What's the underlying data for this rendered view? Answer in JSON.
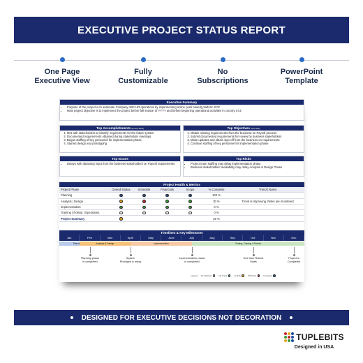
{
  "banner": {
    "title": "EXECUTIVE PROJECT STATUS REPORT"
  },
  "features": [
    {
      "label": "One Page\nExecutive View"
    },
    {
      "label": "Fully\nCustomizable"
    },
    {
      "label": "No\nSubscriptions"
    },
    {
      "label": "PowerPoint\nTemplate"
    }
  ],
  "report": {
    "executive_summary": {
      "title": "Executive Summary",
      "bullets": [
        "Purpose of the project is to automate Company ABC HR operations by implementing online (web based) platform XYZ",
        "Main project objective is to implement the project before fall season of YYYY and before beginning operational activities in country XYZ"
      ]
    },
    "accomplishments": {
      "title": "Top Accomplishments",
      "title_note": "(Previous Week)",
      "items": [
        "Met with stakeholders to identify requirements for the future system",
        "Documented requirements obtained during stakeholder meetings",
        "Began staffing of key personnel for implementation phase",
        "Started design and prototyping"
      ]
    },
    "objectives": {
      "title": "Top Objectives",
      "title_note": "(Next Week)",
      "items": [
        "Obtain missing requirements from the business on Payroll process",
        "Submit documented requirements for review by business stakeholders",
        "Make updates and obtain sign-off from the business on requirements",
        "Continue staffing of key personnel for implementation phase"
      ]
    },
    "issues": {
      "title": "Top Issues",
      "items": [
        "Delays with obtaining input from the business stakeholders on Payroll requirements"
      ]
    },
    "risks": {
      "title": "Top Risks",
      "items": [
        "Project team staffing may delay implementation phase",
        "Business stakeholders' availability may delay Analysis & Design Phase"
      ]
    },
    "health": {
      "title": "Project Health & Metrics",
      "headers": [
        "Project Phase",
        "Overall Status",
        "Schedule",
        "Financials",
        "Scope",
        "% Complete",
        "Trend | Notes"
      ],
      "rows": [
        {
          "phase": "Planning",
          "overall": "#1f4e9c",
          "schedule": "#1f4e9c",
          "financials": "#1f4e9c",
          "scope": "#1f4e9c",
          "complete": "100 %",
          "notes": ""
        },
        {
          "phase": "Analysis | Design",
          "overall": "#e8a21a",
          "schedule": "#c0262d",
          "financials": "#3a9a3a",
          "scope": "#3a9a3a",
          "complete": "30 %",
          "notes": "Trend is Improving. Risks are monitored"
        },
        {
          "phase": "Implementation",
          "overall": "#3a9a3a",
          "schedule": "#3a9a3a",
          "financials": "#3a9a3a",
          "scope": "#3a9a3a",
          "complete": "0 %",
          "notes": ""
        },
        {
          "phase": "Training | Rollout | Operations",
          "overall": "#ffffff",
          "schedule": "#ffffff",
          "financials": "#ffffff",
          "scope": "#ffffff",
          "complete": "0 %",
          "notes": ""
        },
        {
          "phase": "Project Summary",
          "overall": "#e8a21a",
          "schedule": "",
          "financials": "",
          "scope": "",
          "complete": "25 %",
          "notes": ""
        }
      ]
    },
    "timeline": {
      "title": "Timelines & Key Milestones",
      "months": [
        "Jan",
        "Feb",
        "Mar",
        "April",
        "May",
        "June",
        "July",
        "Aug",
        "Sep",
        "Oct",
        "Nov",
        "Dec"
      ],
      "phases": [
        {
          "label": "Planning",
          "color": "#b9cbe8"
        },
        {
          "label": "Analysis & Design",
          "color": "#f4c27a"
        },
        {
          "label": "Implementation",
          "color": "#f7c9a4"
        },
        {
          "label": "Testing, Training & Rollout",
          "color": "#c9e6c1"
        }
      ],
      "milestones": [
        "Planning phase\nis completed",
        "System\nPrototype is ready",
        "Implementation phase\nis completed",
        "End User Rollout\nStarts",
        "Project is\nCompleted"
      ],
      "legend_title": "Legend",
      "legend": [
        {
          "label": "Not Started",
          "color": "#ffffff"
        },
        {
          "label": "On Track",
          "color": "#3a9a3a"
        },
        {
          "label": "At Risk",
          "color": "#e8a21a"
        },
        {
          "label": "Off Track",
          "color": "#c0262d"
        },
        {
          "label": "Complete",
          "color": "#1f4e9c"
        }
      ]
    }
  },
  "bottom_banner": {
    "text": "DESIGNED FOR EXECUTIVE DECISIONS NOT DECORATION"
  },
  "brand": {
    "name": "TUPLEBITS",
    "tagline": "Designed in USA",
    "logo_colors": [
      "#c0262d",
      "#e8a21a",
      "#1f4e9c",
      "#3a9a3a",
      "#c0262d",
      "#1f4e9c",
      "#e8a21a",
      "#3a9a3a",
      "#1f4e9c"
    ]
  }
}
